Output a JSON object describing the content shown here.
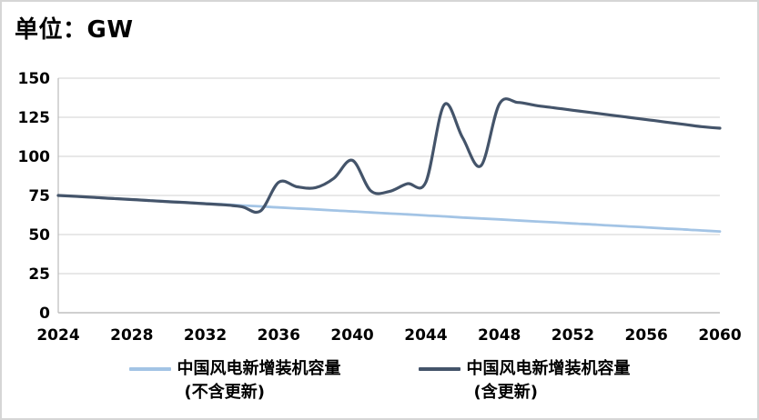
{
  "title": "单位：GW",
  "legend": {
    "items": [
      {
        "label_line1": "中国风电新增装机容量",
        "label_line2": "(不含更新)"
      },
      {
        "label_line1": "中国风电新增装机容量",
        "label_line2": "(含更新)"
      }
    ]
  },
  "chart_data": {
    "type": "line",
    "title": "单位：GW",
    "xlabel": "",
    "ylabel": "GW",
    "xlim": [
      2024,
      2060
    ],
    "ylim": [
      0,
      150
    ],
    "xticks": [
      2024,
      2028,
      2032,
      2036,
      2040,
      2044,
      2048,
      2052,
      2056,
      2060
    ],
    "yticks": [
      0,
      25,
      50,
      75,
      100,
      125,
      150
    ],
    "grid": true,
    "legend_position": "bottom",
    "gridline_color": "#d9d9d9",
    "axis_color": "#bfbfbf",
    "x": [
      2024,
      2025,
      2026,
      2027,
      2028,
      2029,
      2030,
      2031,
      2032,
      2033,
      2034,
      2035,
      2036,
      2037,
      2038,
      2039,
      2040,
      2041,
      2042,
      2043,
      2044,
      2045,
      2046,
      2047,
      2048,
      2049,
      2050,
      2051,
      2052,
      2053,
      2054,
      2055,
      2056,
      2057,
      2058,
      2059,
      2060
    ],
    "series": [
      {
        "name": "中国风电新增装机容量(不含更新)",
        "key": "excluding-renewal",
        "color": "#a3c4e5",
        "width": 2.8,
        "values": [
          75.0,
          74.4,
          73.7,
          73.1,
          72.4,
          71.8,
          71.2,
          70.5,
          69.9,
          69.3,
          68.6,
          68.0,
          67.3,
          66.7,
          66.1,
          65.4,
          64.8,
          64.1,
          63.5,
          62.9,
          62.2,
          61.6,
          60.9,
          60.3,
          59.7,
          59.0,
          58.4,
          57.8,
          57.1,
          56.5,
          55.8,
          55.2,
          54.6,
          53.9,
          53.3,
          52.6,
          52.0
        ]
      },
      {
        "name": "中国风电新增装机容量(含更新)",
        "key": "including-renewal",
        "color": "#44546a",
        "width": 3.2,
        "values": [
          75.0,
          74.4,
          73.7,
          73.0,
          72.4,
          71.7,
          71.0,
          70.4,
          69.7,
          69.0,
          67.8,
          65.0,
          83.5,
          80.5,
          80.0,
          86.0,
          97.5,
          78.0,
          77.5,
          82.5,
          83.5,
          133.0,
          112.0,
          94.0,
          133.5,
          134.5,
          132.5,
          131.0,
          129.5,
          128.0,
          126.5,
          125.0,
          123.5,
          122.0,
          120.5,
          119.0,
          118.0
        ]
      }
    ]
  }
}
